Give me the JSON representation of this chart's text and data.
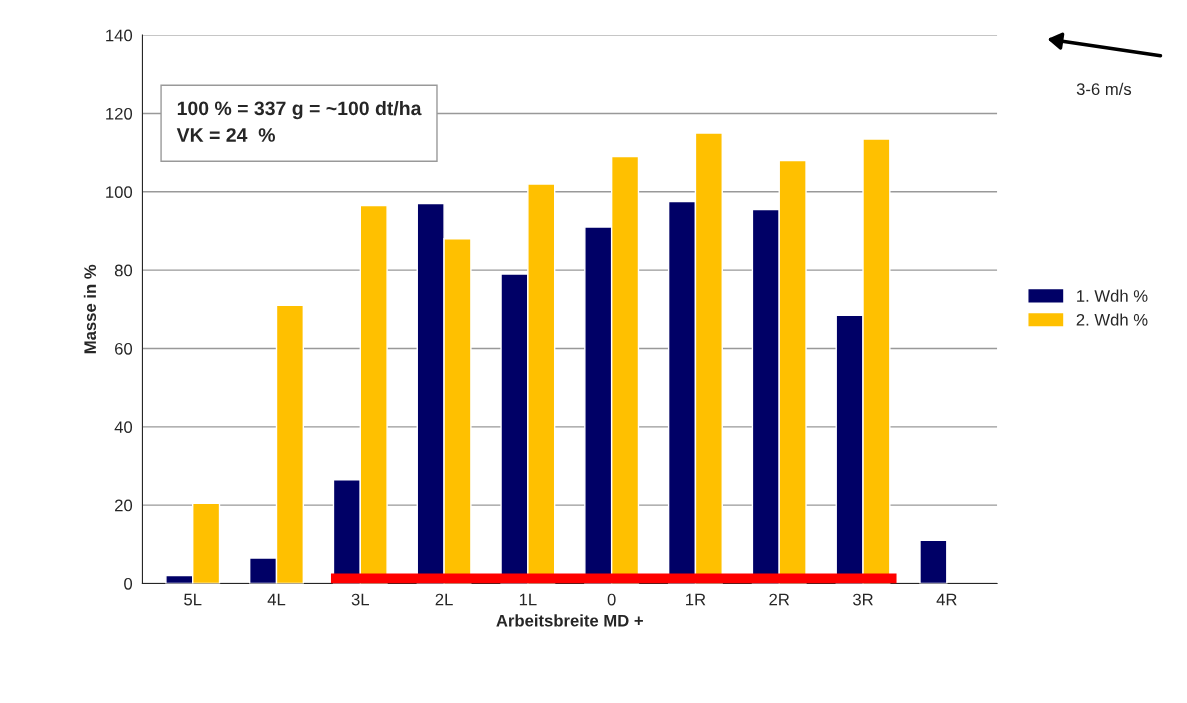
{
  "chart_data": {
    "type": "bar",
    "xlabel": "Arbeitsbreite MD +",
    "ylabel": "Masse in %",
    "categories": [
      "5L",
      "4L",
      "3L",
      "2L",
      "1L",
      "0",
      "1R",
      "2R",
      "3R",
      "4R"
    ],
    "series": [
      {
        "name": "1. Wdh %",
        "color": "#000066",
        "values": [
          2,
          6.5,
          26.5,
          97,
          79,
          91,
          97.5,
          95.5,
          68.5,
          11
        ]
      },
      {
        "name": "2. Wdh %",
        "color": "#ffc000",
        "values": [
          20.5,
          71,
          96.5,
          88,
          102,
          109,
          115,
          108,
          113.5,
          null
        ]
      }
    ],
    "ylim": [
      0,
      140
    ],
    "yticks": [
      0,
      20,
      40,
      60,
      80,
      100,
      120,
      140
    ],
    "grid": "y",
    "legend": "right",
    "annotations": [
      "100 % = 337 g = ~100 dt/ha\nVK = 24  %",
      "3-6 m/s"
    ]
  }
}
